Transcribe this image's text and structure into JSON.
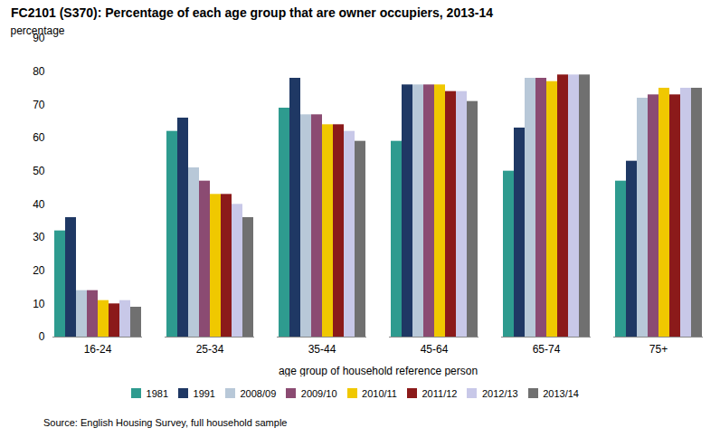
{
  "chart_data": {
    "type": "bar",
    "title": "FC2101 (S370): Percentage of each age group that are owner occupiers, 2013-14",
    "xlabel": "age group of household reference person",
    "ylabel": "percentage",
    "source": "Source: English Housing Survey, full household sample",
    "categories": [
      "16-24",
      "25-34",
      "35-44",
      "45-64",
      "65-74",
      "75+"
    ],
    "series": [
      {
        "name": "1981",
        "color": "#2E9B8F",
        "values": [
          32,
          62,
          69,
          59,
          50,
          47
        ]
      },
      {
        "name": "1991",
        "color": "#1F3864",
        "values": [
          36,
          66,
          78,
          76,
          63,
          53
        ]
      },
      {
        "name": "2008/09",
        "color": "#B8C8D8",
        "values": [
          14,
          51,
          67,
          76,
          78,
          72
        ]
      },
      {
        "name": "2009/10",
        "color": "#8B4B72",
        "values": [
          14,
          47,
          67,
          76,
          78,
          73
        ]
      },
      {
        "name": "2010/11",
        "color": "#F0C800",
        "values": [
          11,
          43,
          64,
          76,
          77,
          75
        ]
      },
      {
        "name": "2011/12",
        "color": "#8B1A1A",
        "values": [
          10,
          43,
          64,
          74,
          79,
          73
        ]
      },
      {
        "name": "2012/13",
        "color": "#C8C8E8",
        "values": [
          11,
          40,
          62,
          74,
          79,
          75
        ]
      },
      {
        "name": "2013/14",
        "color": "#707070",
        "values": [
          9,
          36,
          59,
          71,
          79,
          75
        ]
      }
    ],
    "ylim": [
      0,
      90
    ],
    "yticks": [
      0,
      10,
      20,
      30,
      40,
      50,
      60,
      70,
      80,
      90
    ],
    "grid": false,
    "legend": "bottom"
  }
}
